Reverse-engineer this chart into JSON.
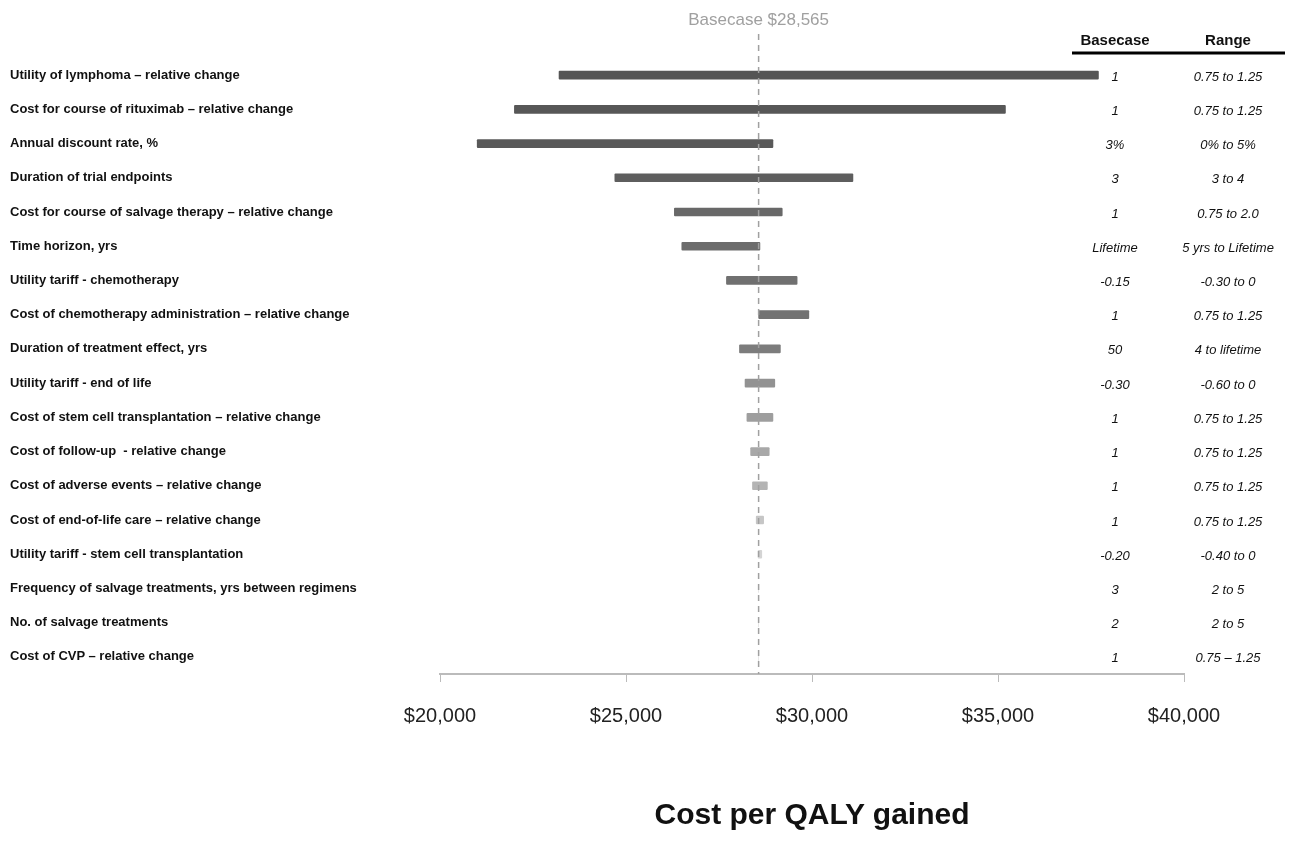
{
  "chart_data": {
    "type": "bar",
    "orientation": "horizontal",
    "categories": [
      "Utility of lymphoma – relative change",
      "Cost for course of rituximab – relative change",
      "Annual discount rate, %",
      "Duration of trial endpoints",
      "Cost for course of salvage therapy – relative change",
      "Time horizon, yrs",
      "Utility tariff - chemotherapy",
      "Cost of chemotherapy administration – relative change",
      "Duration of treatment effect, yrs",
      "Utility tariff - end of life",
      "Cost of stem cell transplantation – relative change",
      "Cost of follow-up  - relative change",
      "Cost of adverse events – relative change",
      "Cost of end-of-life care – relative change",
      "Utility tariff - stem cell transplantation",
      "Frequency of salvage treatments, yrs between regimens",
      "No. of salvage treatments",
      "Cost of CVP – relative change"
    ],
    "base": [
      23200,
      22000,
      21000,
      24700,
      26300,
      26500,
      27700,
      28565,
      28050,
      28200,
      28250,
      28350,
      28400,
      28500,
      28550,
      28565,
      28565,
      28565
    ],
    "values": [
      14500,
      13200,
      7950,
      6400,
      2900,
      2100,
      1900,
      1350,
      1100,
      800,
      700,
      500,
      400,
      200,
      100,
      0,
      0,
      0
    ],
    "colors": [
      "#555555",
      "#575757",
      "#595959",
      "#5e5e5e",
      "#686868",
      "#6c6c6c",
      "#707070",
      "#727272",
      "#7c7c7c",
      "#929292",
      "#9e9e9e",
      "#a8a8a8",
      "#b4b4b4",
      "#c6c6c6",
      "#d4d4d4",
      "#dddddd",
      "#dddddd",
      "#dddddd"
    ],
    "xlim": [
      20000,
      40000
    ],
    "xticks": [
      {
        "value": 20000,
        "label": "$20,000"
      },
      {
        "value": 25000,
        "label": "$25,000"
      },
      {
        "value": 30000,
        "label": "$30,000"
      },
      {
        "value": 35000,
        "label": "$35,000"
      },
      {
        "value": 40000,
        "label": "$40,000"
      }
    ],
    "xlabel": "Cost per QALY gained",
    "ref_lines": [
      {
        "axis": "x",
        "value": 28565,
        "label": "Basecase $28,565",
        "color": "#a0a0a0",
        "line_style": "dashed"
      }
    ],
    "annotations": [
      "Basecase",
      "Range",
      "1",
      "0.75 to 1.25",
      "1",
      "0.75 to 1.25",
      "3%",
      "0% to 5%",
      "3",
      "3 to 4",
      "1",
      "0.75 to 2.0",
      "Lifetime",
      "5 yrs to Lifetime",
      "-0.15",
      "-0.30 to 0",
      "1",
      "0.75 to 1.25",
      "50",
      "4 to lifetime",
      "-0.30",
      "-0.60 to 0",
      "1",
      "0.75 to 1.25",
      "1",
      "0.75 to 1.25",
      "1",
      "0.75 to 1.25",
      "1",
      "0.75 to 1.25",
      "-0.20",
      "-0.40 to 0",
      "3",
      "2 to 5",
      "2",
      "2 to 5",
      "1",
      "0.75 – 1.25"
    ]
  }
}
